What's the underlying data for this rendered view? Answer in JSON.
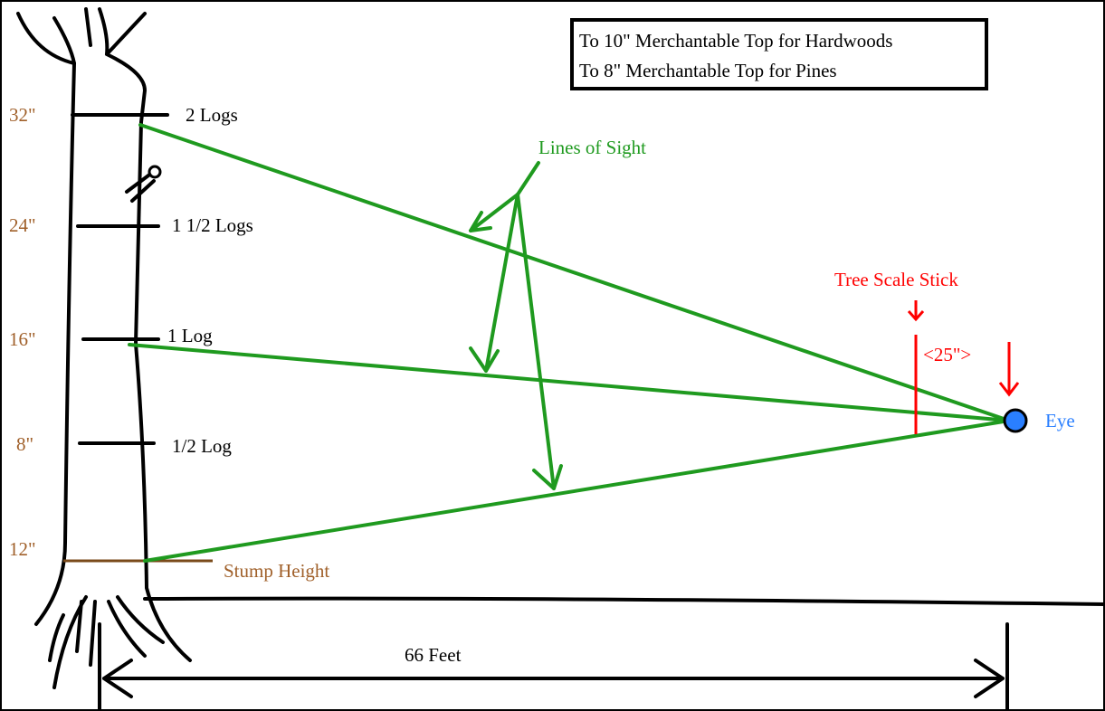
{
  "legend": {
    "lines": [
      "To 10\" Merchantable Top for Hardwoods",
      "To 8\" Merchantable Top for Pines"
    ]
  },
  "heights": [
    {
      "diameter": "32\"",
      "label": "2 Logs"
    },
    {
      "diameter": "24\"",
      "label": "1 1/2 Logs"
    },
    {
      "diameter": "16\"",
      "label": "1 Log"
    },
    {
      "diameter": "8\"",
      "label": "1/2 Log"
    }
  ],
  "stump": {
    "diameter": "12\"",
    "label": "Stump Height"
  },
  "lines_of_sight": "Lines of Sight",
  "scale_stick": {
    "label": "Tree Scale Stick",
    "distance": "<25\">"
  },
  "eye": "Eye",
  "distance": "66 Feet"
}
